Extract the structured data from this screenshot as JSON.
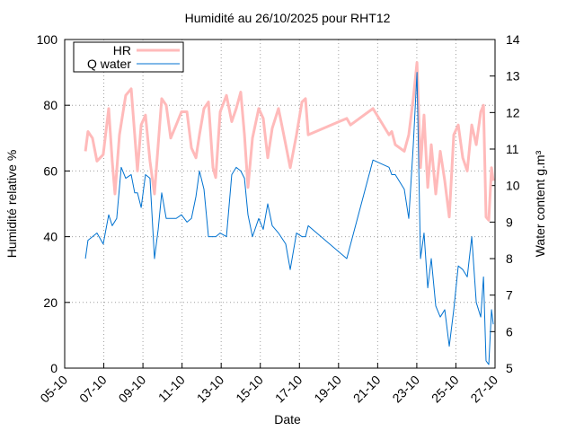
{
  "chart_data": {
    "type": "line",
    "title": "Humidité au 26/10/2025 pour RHT12",
    "x_label": "Date",
    "y_label": "Humidité relative %",
    "y2_label": "Water content g.m³",
    "xlim": [
      5,
      27
    ],
    "xticks": [
      {
        "value": 5,
        "label": "05-10"
      },
      {
        "value": 7,
        "label": "07-10"
      },
      {
        "value": 9,
        "label": "09-10"
      },
      {
        "value": 11,
        "label": "11-10"
      },
      {
        "value": 13,
        "label": "13-10"
      },
      {
        "value": 15,
        "label": "15-10"
      },
      {
        "value": 17,
        "label": "17-10"
      },
      {
        "value": 19,
        "label": "19-10"
      },
      {
        "value": 21,
        "label": "21-10"
      },
      {
        "value": 23,
        "label": "23-10"
      },
      {
        "value": 25,
        "label": "25-10"
      },
      {
        "value": 27,
        "label": "27-10"
      }
    ],
    "ylim": [
      0,
      100
    ],
    "yticks": [
      0,
      20,
      40,
      60,
      80,
      100
    ],
    "y2lim": [
      5,
      14
    ],
    "y2ticks": [
      5,
      6,
      7,
      8,
      9,
      10,
      11,
      12,
      13,
      14
    ],
    "grid": true,
    "legend": "top-left",
    "series": [
      {
        "name": "HR",
        "color": "#ffbaba",
        "axis": "y",
        "x": [
          6.06,
          6.19,
          6.42,
          6.65,
          6.97,
          7.25,
          7.43,
          7.57,
          7.8,
          8.12,
          8.4,
          8.58,
          8.72,
          8.91,
          9.13,
          9.36,
          9.59,
          9.78,
          9.96,
          10.19,
          10.42,
          10.7,
          10.97,
          11.25,
          11.48,
          11.71,
          11.89,
          12.12,
          12.35,
          12.58,
          12.72,
          12.95,
          13.27,
          13.54,
          13.77,
          14.0,
          14.19,
          14.37,
          14.6,
          14.92,
          15.15,
          15.38,
          15.61,
          15.93,
          16.3,
          16.53,
          16.85,
          17.13,
          17.31,
          17.45,
          19.42,
          19.61,
          20.76,
          21.58,
          21.72,
          21.9,
          22.36,
          22.59,
          22.82,
          23.01,
          23.19,
          23.37,
          23.56,
          23.74,
          23.97,
          24.2,
          24.43,
          24.66,
          24.89,
          25.12,
          25.35,
          25.58,
          25.81,
          26.04,
          26.27,
          26.41,
          26.54,
          26.68,
          26.82,
          26.91
        ],
        "values": [
          66,
          72,
          70,
          63,
          65,
          79,
          63,
          53,
          71,
          83,
          85,
          71,
          60,
          74,
          77,
          63,
          53,
          68,
          82,
          80,
          70,
          74,
          78,
          78,
          67,
          64,
          71,
          79,
          81,
          61,
          58,
          78,
          83,
          75,
          79,
          84,
          71,
          55,
          70,
          79,
          76,
          64,
          73,
          79,
          68,
          61,
          71,
          81,
          82,
          71,
          76,
          74,
          79,
          71,
          72,
          68,
          66,
          71,
          82,
          93,
          61,
          77,
          55,
          68,
          53,
          66,
          57,
          46,
          71,
          74,
          64,
          60,
          74,
          68,
          78,
          80,
          46,
          45,
          61,
          57
        ]
      },
      {
        "name": "Q water",
        "color": "#0072d0",
        "axis": "y2",
        "x": [
          6.06,
          6.19,
          6.42,
          6.65,
          6.97,
          7.25,
          7.43,
          7.66,
          7.89,
          8.12,
          8.4,
          8.58,
          8.72,
          8.91,
          9.13,
          9.36,
          9.59,
          9.78,
          9.96,
          10.19,
          10.42,
          10.7,
          10.97,
          11.25,
          11.48,
          11.71,
          11.89,
          12.12,
          12.35,
          12.58,
          12.72,
          12.95,
          13.27,
          13.54,
          13.77,
          14.0,
          14.19,
          14.37,
          14.6,
          14.92,
          15.15,
          15.38,
          15.61,
          15.93,
          16.3,
          16.53,
          16.85,
          17.13,
          17.31,
          17.45,
          19.42,
          20.76,
          21.58,
          21.72,
          21.9,
          22.36,
          22.59,
          22.82,
          23.01,
          23.19,
          23.37,
          23.56,
          23.74,
          23.97,
          24.2,
          24.43,
          24.66,
          24.89,
          25.12,
          25.35,
          25.58,
          25.81,
          26.04,
          26.27,
          26.41,
          26.54,
          26.68,
          26.82,
          26.91
        ],
        "values": [
          8.0,
          8.5,
          8.6,
          8.7,
          8.4,
          9.2,
          8.9,
          9.1,
          10.5,
          10.2,
          10.3,
          9.8,
          9.8,
          9.4,
          10.3,
          10.2,
          8.0,
          8.8,
          9.8,
          9.1,
          9.1,
          9.1,
          9.2,
          9.0,
          9.1,
          9.7,
          10.4,
          9.9,
          8.6,
          8.6,
          8.6,
          8.7,
          8.6,
          10.3,
          10.5,
          10.4,
          10.2,
          9.2,
          8.6,
          9.1,
          8.8,
          9.5,
          8.9,
          8.7,
          8.4,
          7.7,
          8.7,
          8.6,
          8.6,
          8.9,
          8.0,
          10.7,
          10.5,
          10.3,
          10.3,
          9.9,
          9.1,
          11.1,
          13.1,
          8.0,
          8.7,
          7.2,
          8.0,
          6.7,
          6.4,
          6.6,
          5.6,
          6.6,
          7.8,
          7.7,
          7.5,
          8.6,
          6.8,
          6.4,
          7.5,
          5.2,
          5.1,
          6.6,
          6.2
        ]
      }
    ]
  }
}
